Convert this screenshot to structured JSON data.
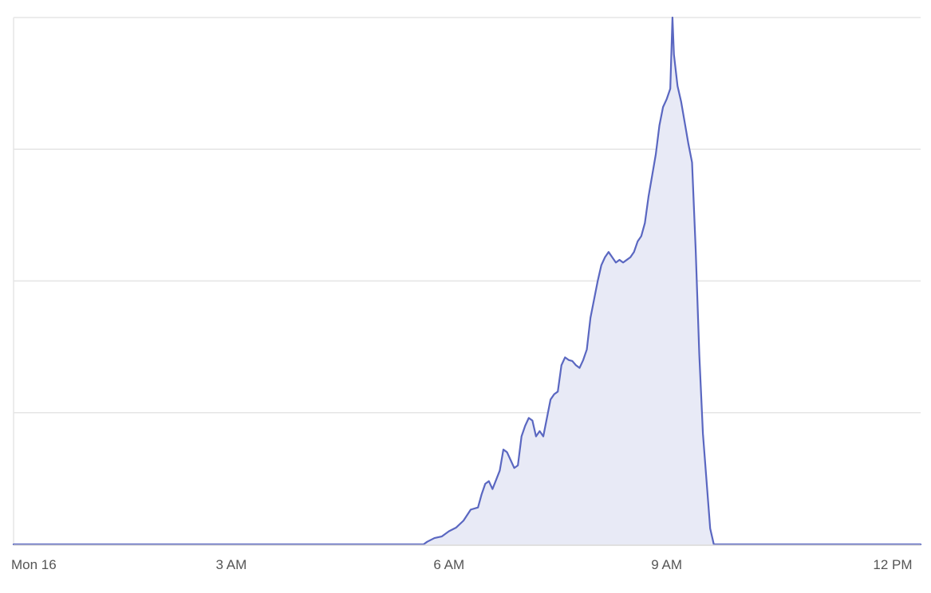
{
  "chart_data": {
    "type": "area",
    "title": "",
    "xlabel": "",
    "ylabel": "",
    "x_unit": "hours since midnight Mon 16",
    "xlim": [
      0,
      12.5
    ],
    "ylim": [
      0,
      100
    ],
    "y_tick_labels_shown": false,
    "grid": "horizontal",
    "line_color": "#5a67c1",
    "fill_color": "#e8eaf6",
    "x_tick_labels": [
      {
        "x": 0,
        "label": "Mon 16"
      },
      {
        "x": 3,
        "label": "3 AM"
      },
      {
        "x": 6,
        "label": "6 AM"
      },
      {
        "x": 9,
        "label": "9 AM"
      },
      {
        "x": 12,
        "label": "12 PM"
      }
    ],
    "series": [
      {
        "name": "",
        "points": [
          [
            0.0,
            0
          ],
          [
            5.65,
            0
          ],
          [
            5.7,
            0.5
          ],
          [
            5.8,
            1.2
          ],
          [
            5.9,
            1.5
          ],
          [
            6.0,
            2.5
          ],
          [
            6.1,
            3.2
          ],
          [
            6.2,
            4.5
          ],
          [
            6.3,
            6.6
          ],
          [
            6.4,
            7.0
          ],
          [
            6.45,
            9.5
          ],
          [
            6.5,
            11.5
          ],
          [
            6.55,
            12.0
          ],
          [
            6.6,
            10.5
          ],
          [
            6.7,
            14.0
          ],
          [
            6.75,
            18.0
          ],
          [
            6.8,
            17.5
          ],
          [
            6.85,
            16.0
          ],
          [
            6.9,
            14.5
          ],
          [
            6.95,
            15.0
          ],
          [
            7.0,
            20.5
          ],
          [
            7.05,
            22.5
          ],
          [
            7.1,
            24.0
          ],
          [
            7.15,
            23.5
          ],
          [
            7.2,
            20.5
          ],
          [
            7.25,
            21.5
          ],
          [
            7.3,
            20.5
          ],
          [
            7.35,
            24.0
          ],
          [
            7.4,
            27.5
          ],
          [
            7.45,
            28.5
          ],
          [
            7.5,
            29.0
          ],
          [
            7.55,
            34.0
          ],
          [
            7.6,
            35.5
          ],
          [
            7.65,
            35.0
          ],
          [
            7.7,
            34.8
          ],
          [
            7.75,
            34.0
          ],
          [
            7.8,
            33.5
          ],
          [
            7.85,
            35.0
          ],
          [
            7.9,
            37.0
          ],
          [
            7.95,
            43.0
          ],
          [
            8.0,
            46.5
          ],
          [
            8.05,
            50.0
          ],
          [
            8.1,
            53.0
          ],
          [
            8.15,
            54.5
          ],
          [
            8.2,
            55.5
          ],
          [
            8.25,
            54.5
          ],
          [
            8.3,
            53.5
          ],
          [
            8.35,
            54.0
          ],
          [
            8.4,
            53.5
          ],
          [
            8.45,
            54.0
          ],
          [
            8.5,
            54.5
          ],
          [
            8.55,
            55.5
          ],
          [
            8.6,
            57.5
          ],
          [
            8.65,
            58.5
          ],
          [
            8.7,
            61.0
          ],
          [
            8.75,
            66.0
          ],
          [
            8.8,
            70.0
          ],
          [
            8.85,
            74.0
          ],
          [
            8.9,
            79.5
          ],
          [
            8.95,
            83.0
          ],
          [
            9.0,
            84.5
          ],
          [
            9.05,
            86.5
          ],
          [
            9.08,
            100.0
          ],
          [
            9.1,
            93.0
          ],
          [
            9.15,
            87.0
          ],
          [
            9.2,
            84.0
          ],
          [
            9.25,
            80.0
          ],
          [
            9.3,
            76.0
          ],
          [
            9.35,
            72.5
          ],
          [
            9.4,
            56.0
          ],
          [
            9.45,
            36.0
          ],
          [
            9.5,
            21.0
          ],
          [
            9.55,
            12.0
          ],
          [
            9.6,
            3.0
          ],
          [
            9.65,
            0
          ],
          [
            12.5,
            0
          ]
        ]
      }
    ]
  }
}
